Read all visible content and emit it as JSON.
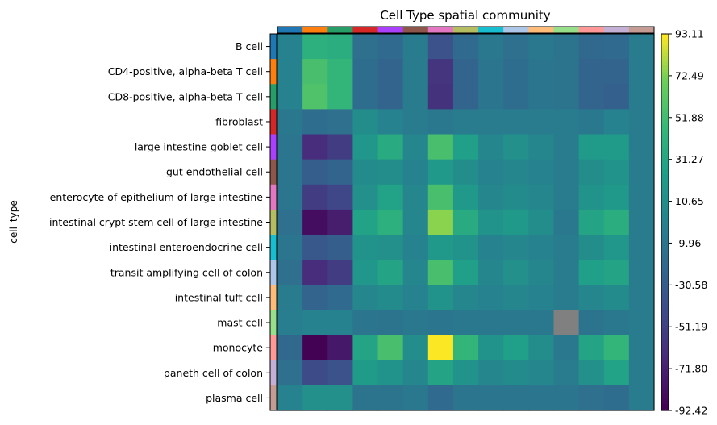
{
  "chart_data": {
    "type": "heatmap",
    "title": "Cell Type spatial community",
    "ylabel": "cell_type",
    "xlabel": "",
    "rows": [
      "B cell",
      "CD4-positive, alpha-beta T cell",
      "CD8-positive, alpha-beta T cell",
      "fibroblast",
      "large intestine goblet cell",
      "gut endothelial cell",
      "enterocyte of epithelium of large intestine",
      "intestinal crypt stem cell of large intestine",
      "intestinal enteroendocrine cell",
      "transit amplifying cell of colon",
      "intestinal tuft cell",
      "mast cell",
      "monocyte",
      "paneth cell of colon",
      "plasma cell"
    ],
    "category_colors": [
      "#1f77b4",
      "#ff7f0e",
      "#279e68",
      "#d62728",
      "#aa40fc",
      "#8c564b",
      "#e377c2",
      "#b5bd61",
      "#17becf",
      "#aec7e8",
      "#ffbb78",
      "#98df8a",
      "#ff9896",
      "#c5b0d5",
      "#c49c94"
    ],
    "colorbar": {
      "min": -92.42,
      "max": 93.11,
      "tick_labels": [
        "93.11",
        "72.49",
        "51.88",
        "31.27",
        "10.65",
        "-9.96",
        "-30.58",
        "-51.19",
        "-71.80",
        "-92.42"
      ]
    },
    "missing_color": "#808080",
    "values": [
      [
        0,
        40,
        38,
        -15,
        -20,
        -5,
        -40,
        -20,
        -8,
        -15,
        -8,
        -12,
        -22,
        -20,
        -5
      ],
      [
        0,
        55,
        45,
        -18,
        -25,
        -5,
        -60,
        -25,
        -10,
        -18,
        -10,
        -12,
        -25,
        -25,
        -5
      ],
      [
        0,
        58,
        45,
        -18,
        -25,
        -5,
        -62,
        -25,
        -10,
        -18,
        -10,
        -12,
        -25,
        -28,
        -5
      ],
      [
        -8,
        -18,
        -15,
        10,
        0,
        -5,
        -8,
        -5,
        -5,
        -5,
        -5,
        -5,
        -8,
        0,
        -5
      ],
      [
        -10,
        -65,
        -55,
        18,
        35,
        5,
        55,
        25,
        5,
        12,
        5,
        -5,
        22,
        22,
        -5
      ],
      [
        -10,
        -30,
        -25,
        8,
        10,
        0,
        20,
        10,
        0,
        5,
        0,
        -5,
        10,
        15,
        -5
      ],
      [
        -10,
        -55,
        -48,
        12,
        28,
        5,
        55,
        20,
        5,
        8,
        5,
        -5,
        15,
        20,
        -5
      ],
      [
        -15,
        -85,
        -75,
        28,
        40,
        5,
        75,
        35,
        15,
        20,
        10,
        -8,
        30,
        38,
        -5
      ],
      [
        -10,
        -35,
        -30,
        15,
        12,
        0,
        20,
        15,
        0,
        5,
        0,
        -5,
        10,
        18,
        -5
      ],
      [
        -15,
        -65,
        -55,
        18,
        30,
        5,
        55,
        25,
        5,
        12,
        5,
        -5,
        25,
        30,
        -5
      ],
      [
        -5,
        -25,
        -20,
        5,
        8,
        0,
        15,
        5,
        0,
        5,
        0,
        -5,
        5,
        8,
        -5
      ],
      [
        -3,
        0,
        0,
        -10,
        -12,
        -8,
        -10,
        -8,
        -8,
        -8,
        -8,
        null,
        -12,
        -8,
        -5
      ],
      [
        -22,
        -92,
        -78,
        30,
        55,
        10,
        93,
        45,
        15,
        25,
        10,
        -8,
        30,
        45,
        -5
      ],
      [
        -15,
        -45,
        -40,
        22,
        15,
        5,
        30,
        15,
        5,
        8,
        5,
        -5,
        12,
        28,
        -5
      ],
      [
        0,
        12,
        12,
        -12,
        -12,
        -8,
        -20,
        -10,
        -10,
        -10,
        -10,
        -10,
        -15,
        -18,
        -5
      ]
    ]
  }
}
